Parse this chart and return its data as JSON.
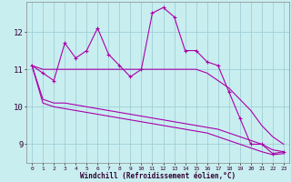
{
  "xlabel": "Windchill (Refroidissement éolien,°C)",
  "bg_color": "#c8eef0",
  "grid_color": "#a0d0d8",
  "line_color": "#aa00aa",
  "x_ticks": [
    0,
    1,
    2,
    3,
    4,
    5,
    6,
    7,
    8,
    9,
    10,
    11,
    12,
    13,
    14,
    15,
    16,
    17,
    18,
    19,
    20,
    21,
    22,
    23
  ],
  "y_ticks": [
    9,
    10,
    11,
    12
  ],
  "xlim": [
    -0.5,
    23.5
  ],
  "ylim": [
    8.5,
    12.8
  ],
  "series": {
    "main": [
      11.1,
      10.9,
      10.7,
      11.7,
      11.3,
      11.5,
      12.1,
      11.4,
      11.1,
      10.8,
      11.0,
      12.5,
      12.65,
      12.4,
      11.5,
      11.5,
      11.2,
      11.1,
      10.4,
      9.7,
      9.0,
      9.0,
      8.75,
      8.8
    ],
    "upper": [
      11.1,
      11.0,
      11.0,
      11.0,
      11.0,
      11.0,
      11.0,
      11.0,
      11.0,
      11.0,
      11.0,
      11.0,
      11.0,
      11.0,
      11.0,
      11.0,
      10.9,
      10.7,
      10.5,
      10.2,
      9.9,
      9.5,
      9.2,
      9.0
    ],
    "lower1": [
      11.1,
      10.2,
      10.1,
      10.1,
      10.05,
      10.0,
      9.95,
      9.9,
      9.85,
      9.8,
      9.75,
      9.7,
      9.65,
      9.6,
      9.55,
      9.5,
      9.45,
      9.4,
      9.3,
      9.2,
      9.1,
      9.0,
      8.85,
      8.8
    ],
    "lower2": [
      11.1,
      10.1,
      10.0,
      9.95,
      9.9,
      9.85,
      9.8,
      9.75,
      9.7,
      9.65,
      9.6,
      9.55,
      9.5,
      9.45,
      9.4,
      9.35,
      9.3,
      9.2,
      9.1,
      9.0,
      8.9,
      8.8,
      8.72,
      8.75
    ]
  }
}
